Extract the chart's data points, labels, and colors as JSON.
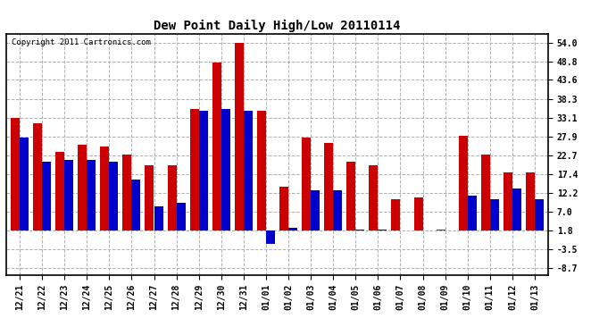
{
  "title": "Dew Point Daily High/Low 20110114",
  "copyright": "Copyright 2011 Cartronics.com",
  "labels": [
    "12/21",
    "12/22",
    "12/23",
    "12/24",
    "12/25",
    "12/26",
    "12/27",
    "12/28",
    "12/29",
    "12/30",
    "12/31",
    "01/01",
    "01/02",
    "01/03",
    "01/04",
    "01/05",
    "01/06",
    "01/07",
    "01/08",
    "01/09",
    "01/10",
    "01/11",
    "01/12",
    "01/13"
  ],
  "highs": [
    33.0,
    31.5,
    23.5,
    25.5,
    25.0,
    23.0,
    20.0,
    20.0,
    35.5,
    48.5,
    54.0,
    35.0,
    14.0,
    27.5,
    26.0,
    21.0,
    20.0,
    10.5,
    11.0,
    2.0,
    28.0,
    23.0,
    18.0,
    18.0
  ],
  "lows": [
    27.5,
    21.0,
    21.5,
    21.5,
    21.0,
    16.0,
    8.5,
    9.5,
    35.0,
    35.5,
    35.0,
    -2.0,
    2.5,
    13.0,
    13.0,
    2.0,
    2.0,
    1.8,
    1.8,
    1.8,
    11.5,
    10.5,
    13.5,
    10.5
  ],
  "high_color": "#cc0000",
  "low_color": "#0000cc",
  "bg_color": "#ffffff",
  "plot_bg_color": "#ffffff",
  "grid_color": "#b0b0b0",
  "yticks": [
    -8.7,
    -3.5,
    1.8,
    7.0,
    12.2,
    17.4,
    22.7,
    27.9,
    33.1,
    38.3,
    43.6,
    48.8,
    54.0
  ],
  "ylim": [
    -10.5,
    56.5
  ],
  "bar_width": 0.4,
  "figwidth": 6.9,
  "figheight": 3.75,
  "dpi": 100
}
